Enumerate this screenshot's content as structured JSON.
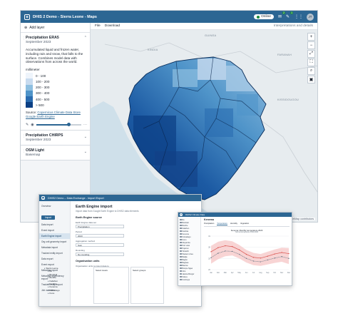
{
  "maps_window": {
    "header": {
      "app_title": "DHIS 2 Demo - Sierra Leone - Maps",
      "status": "Online",
      "messages_count": "2",
      "interpretations_count": "1",
      "user_initials": "JT"
    },
    "toolbar": {
      "add_layer": "Add layer",
      "file": "File",
      "download": "Download",
      "interpretations": "Interpretations and details"
    },
    "layers": [
      {
        "title": "Precipitation ERA5",
        "subtitle": "September 2023",
        "description": "Accumulated liquid and frozen water, including rain and snow, that falls to the surface. Combines model data with observations from across the world.",
        "unit": "millimeter",
        "legend": [
          {
            "label": "0 - 100",
            "color": "#eef4fb"
          },
          {
            "label": "100 - 200",
            "color": "#c8dbef"
          },
          {
            "label": "200 - 300",
            "color": "#8ebfe0"
          },
          {
            "label": "300 - 400",
            "color": "#4f94c9"
          },
          {
            "label": "400 - 500",
            "color": "#2a6cb0"
          },
          {
            "label": "> 500",
            "color": "#0b3f84"
          }
        ],
        "source_label": "Source:",
        "source_link_1": "Copernicus Climate Data Store",
        "source_link_2": "Google Earth Engine"
      },
      {
        "title": "Precipitation CHIRPS",
        "subtitle": "September 2023"
      },
      {
        "title": "OSM Light",
        "subtitle": "Basemap"
      }
    ],
    "map": {
      "labels": [
        "GUINEA",
        "KINDIA",
        "FARANAH",
        "KISSIDOUGOU"
      ],
      "attribution": "© OpenStreetMap contributors"
    },
    "map_controls": [
      "+",
      "−",
      "⤢",
      "⛶",
      "⌕",
      "▣"
    ]
  },
  "ee_window": {
    "title_bar": "DHIS2 Demo – Data Exchange - Import Export",
    "sidebar_items": [
      "Overview",
      "Data import",
      "Event import",
      "Earth Engine import",
      "Org unit geometry import",
      "Metadata import",
      "Tracked entity import",
      "Data export",
      "Event export",
      "Metadata export",
      "Metadata dependency export",
      "Tracked entity export",
      "Job overview"
    ],
    "import_button": "Import",
    "page_title": "Earth Engine import",
    "page_subtitle": "Import data from Google Earth Engine to DHIS2 data elements",
    "section_source": "Earth Engine source",
    "fields": [
      {
        "label": "Earth Engine data set",
        "value": "Precipitation"
      },
      {
        "label": "Period",
        "value": "2023"
      },
      {
        "label": "Aggregation method",
        "value": "Sum"
      },
      {
        "label": "Rounding",
        "value": "No rounding"
      }
    ],
    "section_org": "Organisation units",
    "tree_label": "Organisation units to import data to",
    "tree_items": [
      "Sierra Leone",
      "Bo",
      "Bombali",
      "Bonthe",
      "Kailahun",
      "Kambia",
      "Kenema",
      "Koinadugu",
      "Kono"
    ],
    "levels_label": "Select levels",
    "groups_label": "Select groups"
  },
  "climate_window": {
    "title_bar": "DHIS2 Climate Data",
    "layers": [
      "Bo",
      "Bombali",
      "Bonthe",
      "Kailahun",
      "Kambia",
      "Kenema",
      "Koinadugu",
      "Kono",
      "Moyamba",
      "Port Loko",
      "Pujehun",
      "Tonkolili",
      "Western Area",
      "Badjia",
      "Bagbo",
      "Bagbwe",
      "Baoma",
      "Bumpe Ngao",
      "Gbo",
      "Jaiama Bongor",
      "Kakua",
      "Komboya"
    ],
    "district": "Kenema",
    "tabs": [
      "Precipitation",
      "Temperature",
      "Humidity",
      "Vegetation"
    ],
    "chart_title": "Kenema: Monthly temperature 2023",
    "chart_subtitle": "Normal temperature 1991-2020",
    "period": "2023",
    "note": "Source: ERA5 Copernicus"
  },
  "chart_data": {
    "type": "line",
    "title": "Kenema: Monthly temperature 2023",
    "categories": [
      "Jan",
      "Feb",
      "Mar",
      "Apr",
      "May",
      "Jun",
      "Jul",
      "Aug",
      "Sep",
      "Oct",
      "Nov",
      "Dec"
    ],
    "series": [
      {
        "values": [
          26.8,
          27.9,
          28.4,
          28.2,
          27.3,
          26.1,
          25.3,
          25.1,
          25.6,
          26.2,
          26.6,
          26.3
        ]
      },
      {
        "values": [
          25.2,
          26.4,
          27.0,
          26.9,
          26.1,
          25.0,
          24.3,
          24.1,
          24.6,
          25.1,
          25.5,
          25.0
        ]
      }
    ],
    "band": {
      "upper": [
        28.4,
        29.5,
        29.9,
        29.6,
        28.6,
        27.3,
        26.5,
        26.2,
        26.8,
        27.4,
        27.9,
        27.8
      ],
      "lower": [
        23.6,
        24.8,
        25.6,
        25.8,
        25.0,
        23.9,
        23.2,
        23.0,
        23.4,
        23.8,
        24.1,
        23.5
      ]
    },
    "ylim": [
      22,
      31
    ]
  }
}
